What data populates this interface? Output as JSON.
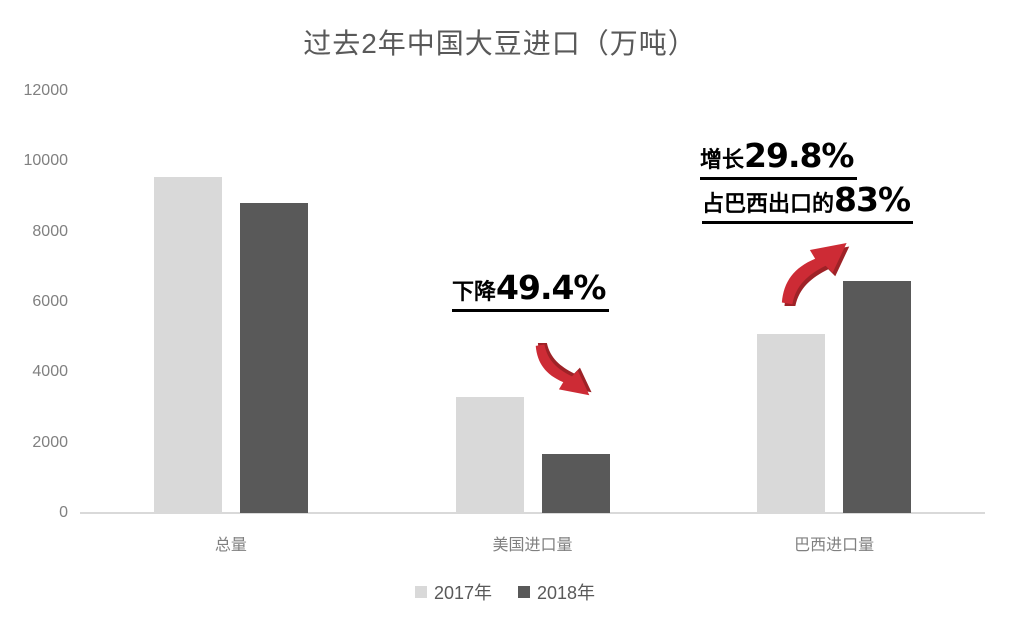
{
  "title": "过去2年中国大豆进口（万吨）",
  "chart_data": {
    "type": "bar",
    "title": "过去2年中国大豆进口（万吨）",
    "categories": [
      "总量",
      "美国进口量",
      "巴西进口量"
    ],
    "series": [
      {
        "name": "2017年",
        "color": "#d9d9d9",
        "values": [
          9553,
          3285,
          5093
        ]
      },
      {
        "name": "2018年",
        "color": "#595959",
        "values": [
          8803,
          1664,
          6610
        ]
      }
    ],
    "ylabel": "",
    "xlabel": "",
    "ylim": [
      0,
      12000
    ],
    "yticks": [
      0,
      2000,
      4000,
      6000,
      8000,
      10000,
      12000
    ],
    "grid": false,
    "legend_position": "bottom",
    "annotations": [
      {
        "target": "美国进口量",
        "text": "下降49.4%",
        "direction": "down"
      },
      {
        "target": "巴西进口量",
        "text": "增长29.8% / 占巴西出口的83%",
        "direction": "up"
      }
    ]
  },
  "annotations": {
    "us": {
      "prefix": "下降",
      "value": "49.4%"
    },
    "brazil": {
      "line1": {
        "prefix": "增长",
        "value": "29.8%"
      },
      "line2": {
        "prefix": "占巴西出口的",
        "value": "83%"
      }
    }
  },
  "colors": {
    "series_2017": "#d9d9d9",
    "series_2018": "#595959",
    "axis_line": "#d9d9d9",
    "tick_text": "#808080",
    "title_text": "#595959",
    "annotation_text": "#000000",
    "arrow_red": "#cd2b35",
    "arrow_red_dark": "#9e2227"
  }
}
